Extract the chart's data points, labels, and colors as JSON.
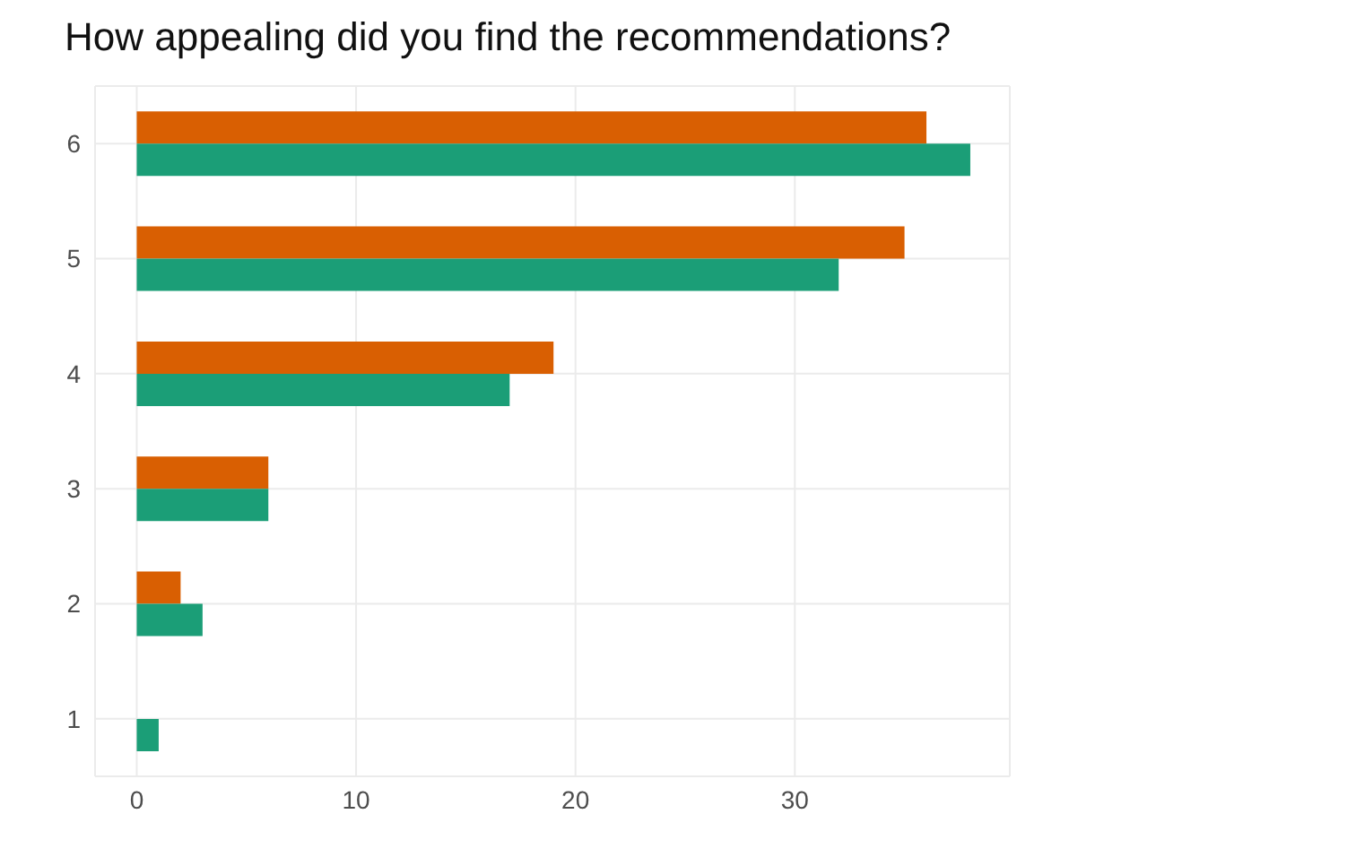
{
  "chart_data": {
    "type": "bar",
    "orientation": "horizontal",
    "title": "How appealing did you find the recommendations?",
    "categories": [
      "6",
      "5",
      "4",
      "3",
      "2",
      "1"
    ],
    "series": [
      {
        "color": "#d95f02",
        "values": [
          36,
          35,
          19,
          6,
          2,
          0
        ]
      },
      {
        "color": "#1b9e77",
        "values": [
          38,
          32,
          17,
          6,
          3,
          1
        ]
      }
    ],
    "xlim": [
      -1.9,
      39.8
    ],
    "xticks": [
      0,
      10,
      20,
      30
    ],
    "grid": true
  }
}
